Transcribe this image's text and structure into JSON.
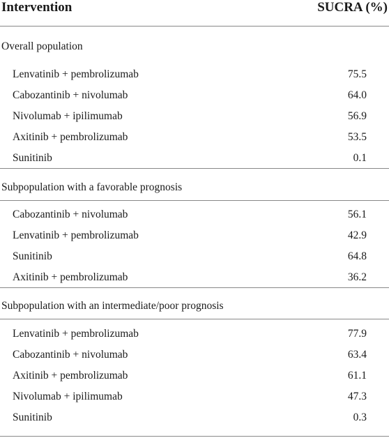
{
  "header": {
    "intervention": "Intervention",
    "sucra": "SUCRA (%)"
  },
  "sections": [
    {
      "title": "Overall population",
      "rows": [
        {
          "name": "Lenvatinib + pembrolizumab",
          "value": "75.5"
        },
        {
          "name": "Cabozantinib + nivolumab",
          "value": "64.0"
        },
        {
          "name": "Nivolumab + ipilimumab",
          "value": "56.9"
        },
        {
          "name": "Axitinib + pembrolizumab",
          "value": "53.5"
        },
        {
          "name": "Sunitinib",
          "value": "0.1"
        }
      ]
    },
    {
      "title": "Subpopulation with a favorable prognosis",
      "rows": [
        {
          "name": "Cabozantinib + nivolumab",
          "value": "56.1"
        },
        {
          "name": "Lenvatinib + pembrolizumab",
          "value": "42.9"
        },
        {
          "name": "Sunitinib",
          "value": "64.8"
        },
        {
          "name": "Axitinib + pembrolizumab",
          "value": "36.2"
        }
      ]
    },
    {
      "title": "Subpopulation with an intermediate/poor prognosis",
      "rows": [
        {
          "name": "Lenvatinib + pembrolizumab",
          "value": "77.9"
        },
        {
          "name": "Cabozantinib + nivolumab",
          "value": "63.4"
        },
        {
          "name": "Axitinib + pembrolizumab",
          "value": "61.1"
        },
        {
          "name": "Nivolumab + ipilimumab",
          "value": "47.3"
        },
        {
          "name": "Sunitinib",
          "value": "0.3"
        }
      ]
    }
  ]
}
